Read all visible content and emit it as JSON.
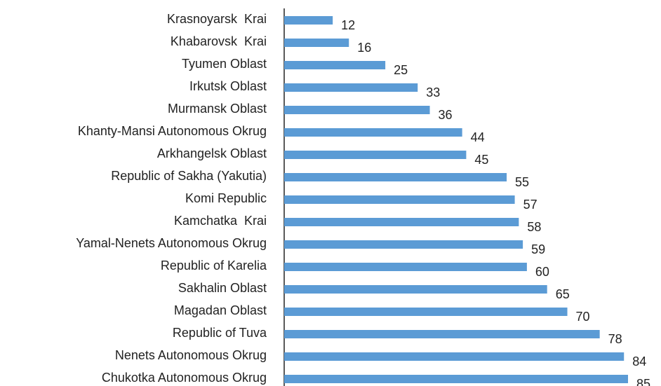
{
  "chart_data": {
    "type": "bar",
    "orientation": "horizontal",
    "categories": [
      "Krasnoyarsk  Krai",
      "Khabarovsk  Krai",
      "Tyumen Oblast",
      "Irkutsk Oblast",
      "Murmansk Oblast",
      "Khanty-Mansi Autonomous Okrug",
      "Arkhangelsk Oblast",
      "Republic of Sakha (Yakutia)",
      "Komi Republic",
      "Kamchatka  Krai",
      "Yamal-Nenets Autonomous Okrug",
      "Republic of Karelia",
      "Sakhalin Oblast",
      "Magadan Oblast",
      "Republic of Tuva",
      "Nenets Autonomous Okrug",
      "Chukotka Autonomous Okrug"
    ],
    "values": [
      12,
      16,
      25,
      33,
      36,
      44,
      45,
      55,
      57,
      58,
      59,
      60,
      65,
      70,
      78,
      84,
      85
    ],
    "color": "#5b9bd5"
  }
}
